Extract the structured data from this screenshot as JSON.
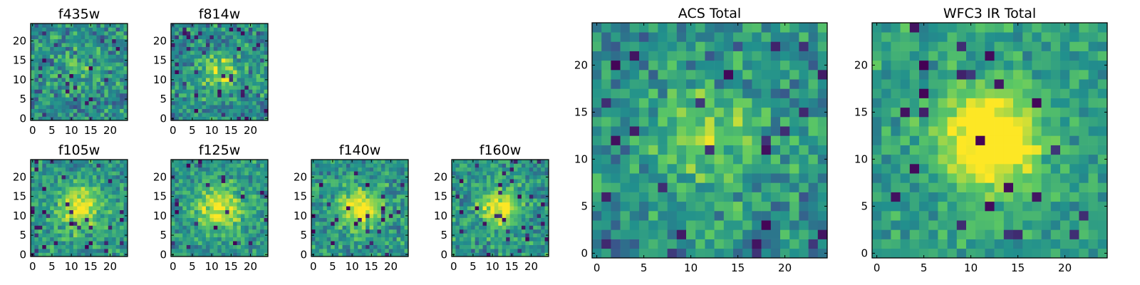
{
  "chart_data": [
    {
      "type": "heatmap",
      "title": "f435w",
      "grid_size": 25,
      "xticks": [
        "0",
        "5",
        "10",
        "15",
        "20"
      ],
      "yticks": [
        "0",
        "5",
        "10",
        "15",
        "20"
      ],
      "seed": 11,
      "peak": {
        "row": 12,
        "col": 12,
        "amp": 0.15,
        "sigma": 4
      },
      "noise": 0.95,
      "colormap": [
        "#440154",
        "#3b528b",
        "#21908d",
        "#5dc963",
        "#fde725"
      ]
    },
    {
      "type": "heatmap",
      "title": "f814w",
      "grid_size": 25,
      "xticks": [
        "0",
        "5",
        "10",
        "15",
        "20"
      ],
      "yticks": [
        "0",
        "5",
        "10",
        "15",
        "20"
      ],
      "seed": 23,
      "peak": {
        "row": 12,
        "col": 12,
        "amp": 0.35,
        "sigma": 3.5
      },
      "noise": 0.95,
      "colormap": [
        "#440154",
        "#3b528b",
        "#21908d",
        "#5dc963",
        "#fde725"
      ]
    },
    {
      "type": "heatmap",
      "title": "f105w",
      "grid_size": 25,
      "xticks": [
        "0",
        "5",
        "10",
        "15",
        "20"
      ],
      "yticks": [
        "0",
        "5",
        "10",
        "15",
        "20"
      ],
      "seed": 37,
      "peak": {
        "row": 12,
        "col": 12,
        "amp": 0.45,
        "sigma": 4
      },
      "noise": 0.8,
      "colormap": [
        "#440154",
        "#3b528b",
        "#21908d",
        "#5dc963",
        "#fde725"
      ]
    },
    {
      "type": "heatmap",
      "title": "f125w",
      "grid_size": 25,
      "xticks": [
        "0",
        "5",
        "10",
        "15",
        "20"
      ],
      "yticks": [
        "0",
        "5",
        "10",
        "15",
        "20"
      ],
      "seed": 41,
      "peak": {
        "row": 12,
        "col": 12,
        "amp": 0.45,
        "sigma": 4
      },
      "noise": 0.8,
      "colormap": [
        "#440154",
        "#3b528b",
        "#21908d",
        "#5dc963",
        "#fde725"
      ]
    },
    {
      "type": "heatmap",
      "title": "f140w",
      "grid_size": 25,
      "xticks": [
        "0",
        "5",
        "10",
        "15",
        "20"
      ],
      "yticks": [
        "0",
        "5",
        "10",
        "15",
        "20"
      ],
      "seed": 53,
      "peak": {
        "row": 12,
        "col": 12,
        "amp": 0.5,
        "sigma": 3.5
      },
      "noise": 0.8,
      "colormap": [
        "#440154",
        "#3b528b",
        "#21908d",
        "#5dc963",
        "#fde725"
      ]
    },
    {
      "type": "heatmap",
      "title": "f160w",
      "grid_size": 25,
      "xticks": [
        "0",
        "5",
        "10",
        "15",
        "20"
      ],
      "yticks": [
        "0",
        "5",
        "10",
        "15",
        "20"
      ],
      "seed": 67,
      "peak": {
        "row": 12,
        "col": 12,
        "amp": 0.5,
        "sigma": 3.5
      },
      "noise": 0.85,
      "colormap": [
        "#440154",
        "#3b528b",
        "#21908d",
        "#5dc963",
        "#fde725"
      ]
    },
    {
      "type": "heatmap",
      "title": "ACS Total",
      "grid_size": 25,
      "xticks": [
        "0",
        "5",
        "10",
        "15",
        "20"
      ],
      "yticks": [
        "0",
        "5",
        "10",
        "15",
        "20"
      ],
      "seed": 79,
      "peak": {
        "row": 12,
        "col": 12,
        "amp": 0.3,
        "sigma": 4
      },
      "noise": 0.9,
      "colormap": [
        "#440154",
        "#3b528b",
        "#21908d",
        "#5dc963",
        "#fde725"
      ]
    },
    {
      "type": "heatmap",
      "title": "WFC3 IR Total",
      "grid_size": 25,
      "xticks": [
        "0",
        "5",
        "10",
        "15",
        "20"
      ],
      "yticks": [
        "0",
        "5",
        "10",
        "15",
        "20"
      ],
      "seed": 97,
      "peak": {
        "row": 12,
        "col": 12,
        "amp": 0.7,
        "sigma": 3.5
      },
      "noise": 0.65,
      "colormap": [
        "#440154",
        "#3b528b",
        "#21908d",
        "#5dc963",
        "#fde725"
      ]
    }
  ]
}
